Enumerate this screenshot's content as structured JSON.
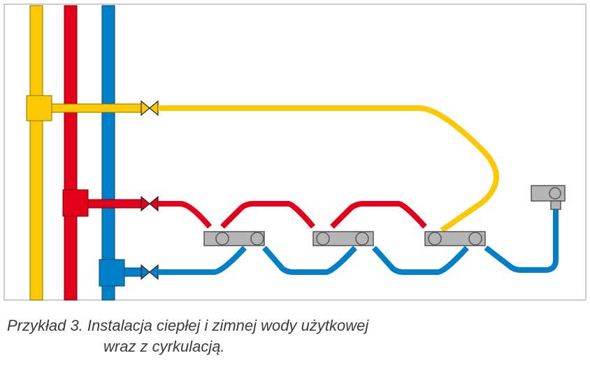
{
  "caption": {
    "line1": "Przykład 3. Instalacja ciepłej i zimnej wody użytkowej",
    "line2": "wraz z cyrkulacją."
  }
}
